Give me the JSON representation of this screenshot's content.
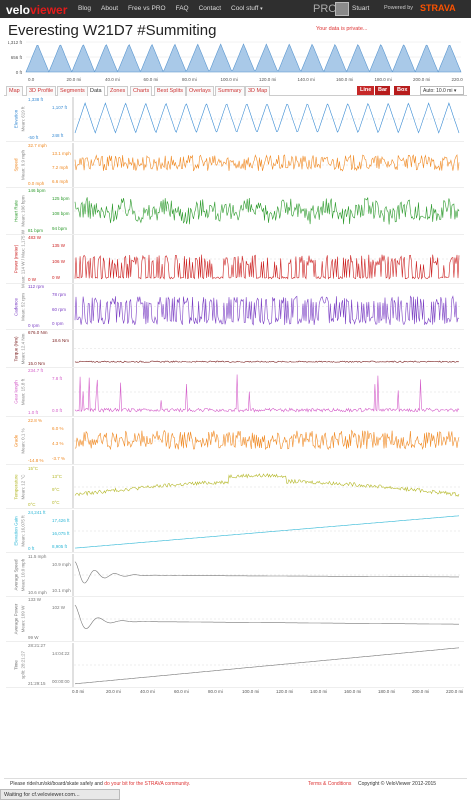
{
  "topbar": {
    "logo_main": "velo",
    "logo_accent": "viewer",
    "nav": [
      "Blog",
      "About",
      "Free vs PRO",
      "FAQ",
      "Contact",
      "Cool stuff"
    ],
    "pro_label": "PRO",
    "username": "Stuart",
    "powered_by": "Powered by",
    "strava": "STRAVA"
  },
  "page": {
    "title": "Everesting W21D7 #Summiting",
    "private_note": "Your data is private..."
  },
  "mini_profile": {
    "y_ticks": [
      "1,312 ft",
      "656 ft",
      "0 ft"
    ],
    "x_ticks": [
      "0.0",
      "20.0 mi",
      "40.0 mi",
      "60.0 mi",
      "80.0 mi",
      "100.0 mi",
      "120.0 mi",
      "140.0 mi",
      "160.0 mi",
      "180.0 mi",
      "200.0 mi",
      "220.0 mi"
    ]
  },
  "tabs": [
    "Map",
    "3D Profile",
    "Segments",
    "Data",
    "Zones",
    "Charts",
    "Best Splits",
    "Overlays",
    "Summary",
    "3D Map"
  ],
  "active_tab": 3,
  "chart_buttons": [
    "Line",
    "Bar",
    "Box"
  ],
  "auto_select": "Auto: 10.0 mi",
  "panels": [
    {
      "name": "Elevation",
      "sub": "Mean: 619 ft",
      "color": "#3c8dd4",
      "labels": [
        "1,338 ft",
        "-50 ft",
        "1,107 ft",
        "248 ft"
      ]
    },
    {
      "name": "Speed",
      "sub": "Mean: 9.9 mph",
      "color": "#f08a24",
      "labels": [
        "32.7 mph",
        "0.0 mph",
        "13.1 mph",
        "7.2 mph",
        "6.6 mph"
      ]
    },
    {
      "name": "Heart Rate",
      "sub": "Mean: 106 bpm",
      "color": "#2e9b2e",
      "labels": [
        "146 bpm",
        "81 bpm",
        "125 bpm",
        "108 bpm",
        "94 bpm"
      ]
    },
    {
      "name": "Power (meter)",
      "sub": "Mean: 114 W / Max: 1,175 W",
      "color": "#cc2222",
      "labels": [
        "483 W",
        "0 W",
        "135 W",
        "106 W",
        "0 W"
      ]
    },
    {
      "name": "Cadence",
      "sub": "Mean: 52 rpm",
      "color": "#7b3fc4",
      "labels": [
        "112 rpm",
        "0 rpm",
        "78 rpm",
        "60 rpm",
        "0 rpm"
      ]
    },
    {
      "name": "Torque (Nm)",
      "sub": "Mean: 12.4 Nm",
      "color": "#7a1f1f",
      "labels": [
        "676.0 Nm",
        "15.0 Nm",
        "18.6 Nm"
      ]
    },
    {
      "name": "Gear length",
      "sub": "Mean: 15.8 ft",
      "color": "#d45fc9",
      "labels": [
        "234.7 ft",
        "1.0 ft",
        "7.8 ft",
        "0.0 ft"
      ]
    },
    {
      "name": "Grade",
      "sub": "Mean: 0.1 %",
      "color": "#f08a24",
      "labels": [
        "22.8 %",
        "-14.8 %",
        "6.0 %",
        "4.3 %",
        "-3.7 %"
      ]
    },
    {
      "name": "Temperature",
      "sub": "Mean: 12 °C",
      "color": "#b5b82a",
      "labels": [
        "15°C",
        "0°C",
        "13°C",
        "9°C",
        "0°C"
      ]
    },
    {
      "name": "Elevation Gain",
      "sub": "Mean: 16,075 ft",
      "color": "#2fb7d6",
      "labels": [
        "24,241 ft",
        "0 ft",
        "17,426 ft",
        "16,075 ft",
        "8,905 ft"
      ]
    },
    {
      "name": "Average Speed",
      "sub": "Mean: 10.0 mph",
      "color": "#777777",
      "labels": [
        "11.5 mph",
        "10.6 mph",
        "10.9 mph",
        "10.1 mph"
      ]
    },
    {
      "name": "Average Power",
      "sub": "Mean: 109 W",
      "color": "#777777",
      "labels": [
        "133 W",
        "99 W",
        "102 W"
      ]
    },
    {
      "name": "Time",
      "sub": "split: 28:21:27",
      "color": "#777777",
      "labels": [
        "28:21:27",
        "21:29:15",
        "14:04:22",
        "00:00:00"
      ]
    }
  ],
  "bottom_axis": [
    "0.0 mi",
    "20.0 mi",
    "40.0 mi",
    "60.0 mi",
    "80.0 mi",
    "100.0 mi",
    "120.0 mi",
    "140.0 mi",
    "160.0 mi",
    "180.0 mi",
    "200.0 mi",
    "220.0 mi"
  ],
  "footer": {
    "left_text": "Please ride/run/ski/board/skate safely and",
    "left_link": "do your bit for the STRAVA community.",
    "terms": "Terms & Conditions",
    "copyright": "Copyright © VeloViewer 2012-2015"
  },
  "status_bar": "Waiting for cf.veloviewer.com..."
}
